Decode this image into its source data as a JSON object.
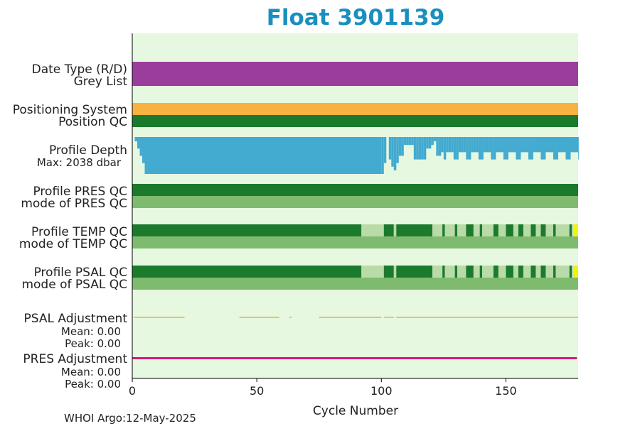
{
  "title": "Float 3901139",
  "footer": "WHOI Argo:12-May-2025",
  "colors": {
    "title": "#1a8fbf",
    "background": "#e6f8e0",
    "grey_list": "#9b3d9b",
    "positioning": "#f8b23f",
    "qc_good": "#1b7a2c",
    "qc_mode": "#7fbb6f",
    "qc_light": "#b9dba8",
    "qc_yellow": "#f3f30e",
    "profile_depth": "#43aad0",
    "max_depth_text": "#1a8fbf",
    "psal_adjustment": "#f0b020",
    "pres_adjustment": "#d6197a"
  },
  "chart_data": {
    "type": "timeline",
    "title": "Float 3901139",
    "xlabel": "Cycle Number",
    "xlim": [
      0,
      179
    ],
    "xticks": [
      0,
      50,
      100,
      150
    ],
    "rows": [
      {
        "key": "date_type",
        "label": "Date Type (R/D)"
      },
      {
        "key": "grey_list",
        "label": "Grey List",
        "color": "grey_list",
        "segments": [
          [
            0,
            179
          ]
        ]
      },
      {
        "key": "positioning_system",
        "label": "Positioning System",
        "color": "positioning",
        "segments": [
          [
            0,
            179
          ]
        ]
      },
      {
        "key": "position_qc",
        "label": "Position QC",
        "color": "qc_good",
        "segments": [
          [
            0,
            179
          ]
        ]
      },
      {
        "key": "profile_depth",
        "label": "Profile Depth",
        "sublabel": "Max: 2038 dbar",
        "max_dbar": 2038
      },
      {
        "key": "profile_pres_qc",
        "label": "Profile PRES QC",
        "color": "qc_good",
        "segments": [
          [
            0,
            179
          ]
        ]
      },
      {
        "key": "mode_pres_qc",
        "label": "mode of PRES QC",
        "color": "qc_mode",
        "segments": [
          [
            0,
            179
          ]
        ]
      },
      {
        "key": "profile_temp_qc",
        "label": "Profile TEMP QC"
      },
      {
        "key": "mode_temp_qc",
        "label": "mode of TEMP QC",
        "color": "qc_mode",
        "segments": [
          [
            0,
            179
          ]
        ]
      },
      {
        "key": "profile_psal_qc",
        "label": "Profile PSAL QC"
      },
      {
        "key": "mode_psal_qc",
        "label": "mode of PSAL QC",
        "color": "qc_mode",
        "segments": [
          [
            0,
            179
          ]
        ]
      },
      {
        "key": "psal_adjustment",
        "label": "PSAL Adjustment",
        "mean": "Mean: 0.00",
        "peak": "Peak: 0.00"
      },
      {
        "key": "pres_adjustment",
        "label": "PRES Adjustment",
        "mean": "Mean: 0.00",
        "peak": "Peak: 0.00"
      }
    ],
    "profile_depth_dbar": [
      [
        0,
        2038
      ],
      [
        1,
        1800
      ],
      [
        2,
        1400
      ],
      [
        3,
        1000
      ],
      [
        4,
        600
      ],
      [
        5,
        0
      ],
      [
        100,
        0
      ],
      [
        101,
        600
      ],
      [
        102,
        2038
      ],
      [
        103,
        800
      ],
      [
        104,
        400
      ],
      [
        105,
        200
      ],
      [
        106,
        600
      ],
      [
        107,
        1000
      ],
      [
        108,
        1000
      ],
      [
        109,
        1600
      ],
      [
        110,
        1600
      ],
      [
        111,
        1600
      ],
      [
        112,
        1600
      ],
      [
        113,
        800
      ],
      [
        114,
        800
      ],
      [
        115,
        800
      ],
      [
        116,
        800
      ],
      [
        117,
        800
      ],
      [
        118,
        1400
      ],
      [
        119,
        1400
      ],
      [
        120,
        1600
      ],
      [
        121,
        1800
      ],
      [
        122,
        1000
      ],
      [
        123,
        1000
      ],
      [
        124,
        1200
      ],
      [
        125,
        800
      ],
      [
        126,
        1200
      ],
      [
        127,
        1200
      ],
      [
        128,
        1200
      ],
      [
        129,
        800
      ],
      [
        130,
        800
      ],
      [
        131,
        1200
      ],
      [
        132,
        1200
      ],
      [
        133,
        1200
      ],
      [
        134,
        800
      ],
      [
        135,
        800
      ],
      [
        136,
        1200
      ],
      [
        137,
        1200
      ],
      [
        138,
        1200
      ],
      [
        139,
        800
      ],
      [
        140,
        800
      ],
      [
        141,
        1200
      ],
      [
        142,
        1200
      ],
      [
        143,
        1200
      ],
      [
        144,
        800
      ],
      [
        145,
        800
      ],
      [
        146,
        1200
      ],
      [
        147,
        1200
      ],
      [
        148,
        1200
      ],
      [
        149,
        800
      ],
      [
        150,
        800
      ],
      [
        151,
        1200
      ],
      [
        152,
        1200
      ],
      [
        153,
        1200
      ],
      [
        154,
        800
      ],
      [
        155,
        800
      ],
      [
        156,
        1200
      ],
      [
        157,
        1200
      ],
      [
        158,
        1200
      ],
      [
        159,
        800
      ],
      [
        160,
        800
      ],
      [
        161,
        1200
      ],
      [
        162,
        1200
      ],
      [
        163,
        1200
      ],
      [
        164,
        800
      ],
      [
        165,
        800
      ],
      [
        166,
        1200
      ],
      [
        167,
        1200
      ],
      [
        168,
        1200
      ],
      [
        169,
        800
      ],
      [
        170,
        800
      ],
      [
        171,
        1200
      ],
      [
        172,
        1200
      ],
      [
        173,
        1200
      ],
      [
        174,
        800
      ],
      [
        175,
        800
      ],
      [
        176,
        1200
      ],
      [
        177,
        1200
      ],
      [
        178,
        1200
      ],
      [
        179,
        800
      ]
    ],
    "profile_qc_segments": [
      {
        "start": 0,
        "end": 92,
        "color": "qc_good"
      },
      {
        "start": 92,
        "end": 101,
        "color": "qc_light"
      },
      {
        "start": 101,
        "end": 105,
        "color": "qc_good"
      },
      {
        "start": 105,
        "end": 106,
        "color": "qc_light"
      },
      {
        "start": 106,
        "end": 120.5,
        "color": "qc_good"
      },
      {
        "start": 120.5,
        "end": 124.5,
        "color": "qc_light"
      },
      {
        "start": 124.5,
        "end": 125.5,
        "color": "qc_good"
      },
      {
        "start": 125.5,
        "end": 129.5,
        "color": "qc_light"
      },
      {
        "start": 129.5,
        "end": 130.5,
        "color": "qc_good"
      },
      {
        "start": 130.5,
        "end": 134,
        "color": "qc_light"
      },
      {
        "start": 134,
        "end": 137,
        "color": "qc_good"
      },
      {
        "start": 137,
        "end": 139.5,
        "color": "qc_light"
      },
      {
        "start": 139.5,
        "end": 140.5,
        "color": "qc_good"
      },
      {
        "start": 140.5,
        "end": 145,
        "color": "qc_light"
      },
      {
        "start": 145,
        "end": 147,
        "color": "qc_good"
      },
      {
        "start": 147,
        "end": 150,
        "color": "qc_light"
      },
      {
        "start": 150,
        "end": 153,
        "color": "qc_good"
      },
      {
        "start": 153,
        "end": 155,
        "color": "qc_light"
      },
      {
        "start": 155,
        "end": 157,
        "color": "qc_good"
      },
      {
        "start": 157,
        "end": 160,
        "color": "qc_light"
      },
      {
        "start": 160,
        "end": 162,
        "color": "qc_good"
      },
      {
        "start": 162,
        "end": 164,
        "color": "qc_light"
      },
      {
        "start": 164,
        "end": 166,
        "color": "qc_good"
      },
      {
        "start": 166,
        "end": 169,
        "color": "qc_light"
      },
      {
        "start": 169,
        "end": 170,
        "color": "qc_good"
      },
      {
        "start": 170,
        "end": 175.5,
        "color": "qc_light"
      },
      {
        "start": 175.5,
        "end": 176.5,
        "color": "qc_good"
      },
      {
        "start": 176.5,
        "end": 177,
        "color": "qc_light"
      },
      {
        "start": 177,
        "end": 179,
        "color": "qc_yellow"
      }
    ],
    "psal_adjustment_segments": [
      [
        0.5,
        21
      ],
      [
        43,
        59
      ],
      [
        63,
        64
      ],
      [
        75,
        100
      ],
      [
        101,
        105
      ],
      [
        106,
        179
      ]
    ],
    "pres_adjustment_segments": [
      [
        0,
        178.5
      ]
    ]
  }
}
